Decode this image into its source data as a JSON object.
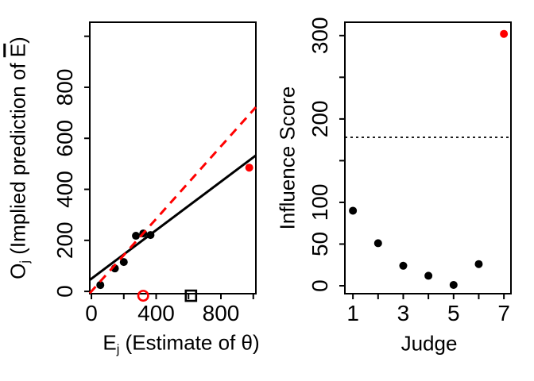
{
  "figure": {
    "background": "#ffffff",
    "highlight_color": "#ff0000",
    "default_color": "#000000"
  },
  "chart_data": [
    {
      "type": "scatter",
      "title": "",
      "xlabel": "Ej (Estimate of θ)",
      "ylabel": "Oj (Implied prediction of Ē)",
      "xlabel_parts": {
        "main": "E",
        "sub": "j",
        "rest": " (Estimate of θ)"
      },
      "ylabel_parts": {
        "main": "O",
        "sub": "j",
        "mid": " (Implied prediction of ",
        "ebar": "E",
        "close": ")"
      },
      "xlim": [
        -10,
        1016
      ],
      "ylim": [
        -9,
        1055
      ],
      "grid": false,
      "legend": "none",
      "x_axis": {
        "ticks": [
          {
            "v": 0,
            "label": "0"
          },
          {
            "v": 200,
            "label": ""
          },
          {
            "v": 400,
            "label": "400"
          },
          {
            "v": 600,
            "label": ""
          },
          {
            "v": 800,
            "label": "800"
          },
          {
            "v": 1000,
            "label": ""
          }
        ]
      },
      "y_axis": {
        "ticks": [
          {
            "v": 0,
            "label": "0"
          },
          {
            "v": 200,
            "label": "200"
          },
          {
            "v": 400,
            "label": "400"
          },
          {
            "v": 600,
            "label": "600"
          },
          {
            "v": 800,
            "label": "800"
          },
          {
            "v": 1000,
            "label": ""
          }
        ]
      },
      "series": [
        {
          "name": "judge-points",
          "marker": "filled-circle",
          "color": "#000000",
          "points": [
            [
              55,
              25
            ],
            [
              145,
              90
            ],
            [
              200,
              115
            ],
            [
              275,
              218
            ],
            [
              320,
              227
            ],
            [
              365,
              221
            ]
          ]
        },
        {
          "name": "influential-judge-point",
          "marker": "filled-circle",
          "color": "#ff0000",
          "points": [
            [
              975,
              485
            ]
          ]
        },
        {
          "name": "open-circle-marker",
          "marker": "open-circle",
          "color": "#ff0000",
          "points": [
            [
              320,
              -17
            ]
          ]
        },
        {
          "name": "open-square-marker",
          "marker": "open-square",
          "color": "#000000",
          "points": [
            [
              615,
              -17
            ]
          ]
        }
      ],
      "lines": [
        {
          "name": "fit-line",
          "style": "solid",
          "color": "#000000",
          "x1": -10,
          "y1": 45,
          "x2": 1016,
          "y2": 533
        },
        {
          "name": "identity-line",
          "style": "dashed",
          "color": "#ff0000",
          "x1": -10,
          "y1": -7,
          "x2": 1016,
          "y2": 722
        }
      ]
    },
    {
      "type": "scatter",
      "title": "",
      "xlabel": "Judge",
      "ylabel": "Influence Score",
      "xlim": [
        0.68,
        7.28
      ],
      "ylim": [
        -9.5,
        316
      ],
      "grid": false,
      "legend": "none",
      "x_axis": {
        "ticks": [
          {
            "v": 1,
            "label": "1"
          },
          {
            "v": 2,
            "label": ""
          },
          {
            "v": 3,
            "label": "3"
          },
          {
            "v": 4,
            "label": ""
          },
          {
            "v": 5,
            "label": "5"
          },
          {
            "v": 6,
            "label": ""
          },
          {
            "v": 7,
            "label": "7"
          }
        ]
      },
      "y_axis": {
        "ticks": [
          {
            "v": 0,
            "label": "0"
          },
          {
            "v": 50,
            "label": "50"
          },
          {
            "v": 100,
            "label": "100"
          },
          {
            "v": 150,
            "label": ""
          },
          {
            "v": 200,
            "label": "200"
          },
          {
            "v": 250,
            "label": ""
          },
          {
            "v": 300,
            "label": "300"
          }
        ]
      },
      "series": [
        {
          "name": "judge-influence-points",
          "marker": "filled-circle",
          "color": "#000000",
          "points": [
            [
              1,
              90
            ],
            [
              2,
              51
            ],
            [
              3,
              24
            ],
            [
              4,
              12
            ],
            [
              5,
              1
            ],
            [
              6,
              26
            ]
          ]
        },
        {
          "name": "influential-judge-point",
          "marker": "filled-circle",
          "color": "#ff0000",
          "points": [
            [
              7,
              302
            ]
          ]
        }
      ],
      "lines": [
        {
          "name": "threshold-line",
          "style": "dotted",
          "color": "#000000",
          "x1": 0.68,
          "y1": 178,
          "x2": 7.28,
          "y2": 178
        }
      ]
    }
  ]
}
